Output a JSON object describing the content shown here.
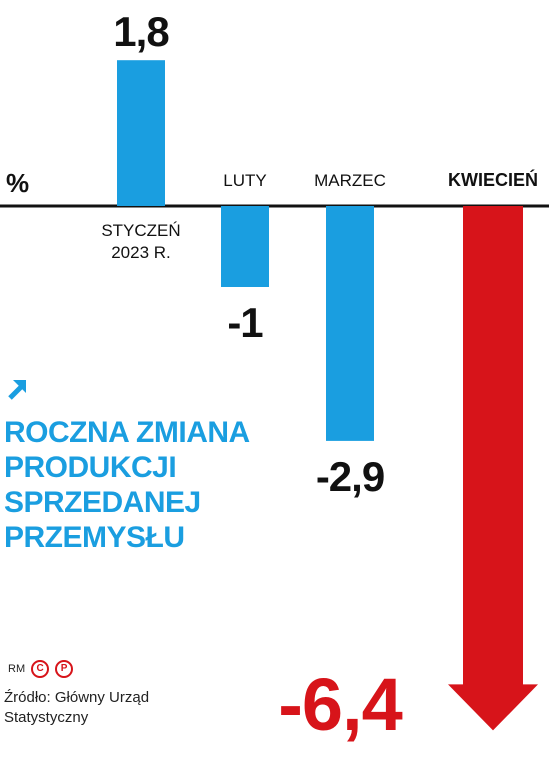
{
  "chart_data": {
    "type": "bar",
    "unit_label": "%",
    "categories": [
      "STYCZEŃ 2023 R.",
      "LUTY",
      "MARZEC",
      "KWIECIEŃ"
    ],
    "category_lines": [
      [
        "STYCZEŃ",
        "2023 R."
      ],
      [
        "LUTY"
      ],
      [
        "MARZEC"
      ],
      [
        "KWIECIEŃ"
      ]
    ],
    "values": [
      1.8,
      -1,
      -2.9,
      -6.4
    ],
    "value_labels": [
      "1,8",
      "-1",
      "-2,9",
      "-6,4"
    ],
    "highlight_index": 3,
    "colors": {
      "bar": "#1a9ee0",
      "highlight": "#d7141a",
      "axis": "#111111"
    }
  },
  "title_lines": [
    "ROCZNA ZMIANA",
    "PRODUKCJI",
    "SPRZEDANEJ",
    "PRZEMYSŁU"
  ],
  "credit": {
    "initials": "RM",
    "mark_c": "C",
    "mark_p": "P"
  },
  "source": "Źródło: Główny Urząd Statystyczny"
}
